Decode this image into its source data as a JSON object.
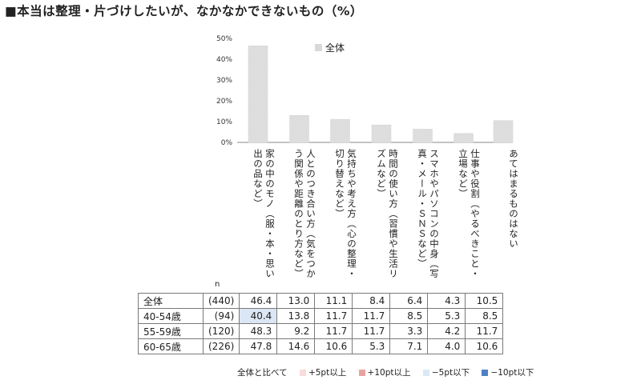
{
  "title": "■本当は整理・片づけしたいが、なかなかできないもの（%）",
  "chart_data": {
    "type": "bar",
    "categories": [
      "家の中のモノ（服・本・思い出の品など）",
      "人とのつき合い方（気をつかう関係や距離のとり方など）",
      "気持ちや考え方（心の整理・切り替えなど）",
      "時間の使い方（習慣や生活リズムなど）",
      "スマホやパソコンの中身（写真・メール・ＳＮＳなど）",
      "仕事や役割（やるべきこと・立場など）",
      "あてはまるものはない"
    ],
    "series": [
      {
        "name": "全体",
        "values": [
          46.4,
          13.0,
          11.1,
          8.4,
          6.4,
          4.3,
          10.5
        ]
      }
    ],
    "y_ticks": [
      "50%",
      "40%",
      "30%",
      "20%",
      "10%",
      "0%"
    ],
    "ylim": [
      0,
      50
    ],
    "bar_color": "#d9d9d9",
    "legend_position": "top"
  },
  "table": {
    "n_header": "n",
    "rows": [
      {
        "label": "全体",
        "n": "(440)",
        "values": [
          "46.4",
          "13.0",
          "11.1",
          "8.4",
          "6.4",
          "4.3",
          "10.5"
        ]
      },
      {
        "label": "40-54歳",
        "n": "(94)",
        "values": [
          "40.4",
          "13.8",
          "11.7",
          "11.7",
          "8.5",
          "5.3",
          "8.5"
        ]
      },
      {
        "label": "55-59歳",
        "n": "(120)",
        "values": [
          "48.3",
          "9.2",
          "11.7",
          "11.7",
          "3.3",
          "4.2",
          "11.7"
        ]
      },
      {
        "label": "60-65歳",
        "n": "(226)",
        "values": [
          "47.8",
          "14.6",
          "10.6",
          "5.3",
          "7.1",
          "4.0",
          "10.6"
        ]
      }
    ]
  },
  "highlight_colors": {
    "plus5": "#f8dcdc",
    "plus10": "#e8a39e",
    "minus5": "#dbe7f5",
    "minus10": "#4f7fc4"
  },
  "footnote": {
    "lead": "全体と比べて",
    "plus5": "+5pt以上",
    "plus10": "+10pt以上",
    "minus5": "−5pt以下",
    "minus10": "−10pt以下"
  }
}
